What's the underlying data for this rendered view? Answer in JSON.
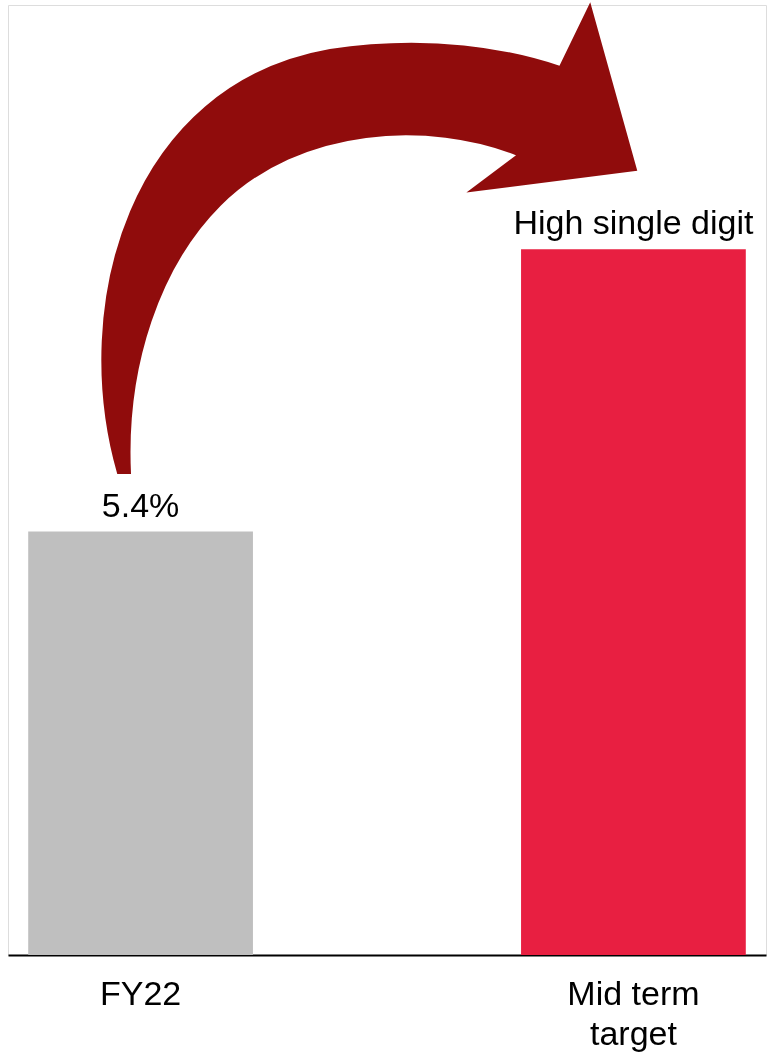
{
  "chart_data": {
    "type": "bar",
    "categories": [
      "FY22",
      "Mid term target"
    ],
    "values": [
      5.4,
      9.0
    ],
    "colors": [
      "#bfbfbf",
      "#e81f41"
    ],
    "value_labels": [
      "5.4%",
      "High single digit"
    ]
  }
}
